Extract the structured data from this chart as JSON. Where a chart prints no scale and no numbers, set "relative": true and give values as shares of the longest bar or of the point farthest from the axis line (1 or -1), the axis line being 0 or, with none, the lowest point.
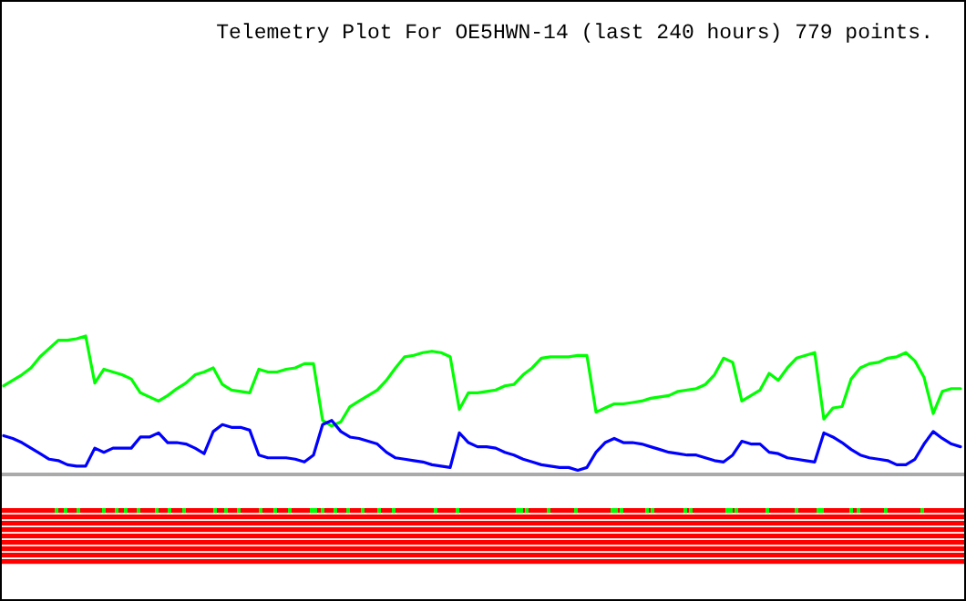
{
  "chart_data": {
    "type": "line",
    "title": "Telemetry Plot For OE5HWN-14 (last 240 hours) 779 points.",
    "relative": true,
    "categories": [
      null,
      null,
      null,
      null,
      null,
      null,
      null,
      null,
      null,
      null,
      null,
      null,
      null,
      null,
      null,
      null,
      null,
      null,
      null,
      null,
      null,
      null,
      null,
      null,
      null,
      null,
      null,
      null,
      null,
      null,
      null,
      null,
      null,
      null,
      null,
      null,
      null,
      null,
      null,
      null,
      null,
      null,
      null,
      null,
      null,
      null,
      null,
      null,
      null,
      null,
      null,
      null,
      null,
      null,
      null,
      null,
      null,
      null,
      null,
      null,
      null,
      null,
      null,
      null,
      null,
      null,
      null,
      null,
      null,
      null,
      null,
      null,
      null,
      null,
      null,
      null,
      null,
      null,
      null,
      null,
      null,
      null,
      null,
      null,
      null,
      null,
      null,
      null,
      null,
      null,
      null,
      null,
      null,
      null,
      null,
      null,
      null,
      null,
      null,
      null,
      null,
      null,
      null,
      null,
      null,
      null
    ],
    "series": [
      {
        "color": "#00ff00",
        "values": [
          0.64,
          0.68,
          0.72,
          0.77,
          0.85,
          0.91,
          0.97,
          0.97,
          0.98,
          1.0,
          0.66,
          0.76,
          0.74,
          0.72,
          0.69,
          0.59,
          0.56,
          0.53,
          0.57,
          0.62,
          0.66,
          0.72,
          0.74,
          0.77,
          0.65,
          0.61,
          0.6,
          0.59,
          0.76,
          0.74,
          0.74,
          0.76,
          0.77,
          0.8,
          0.8,
          0.39,
          0.35,
          0.38,
          0.49,
          0.53,
          0.57,
          0.61,
          0.68,
          0.77,
          0.85,
          0.86,
          0.88,
          0.89,
          0.88,
          0.85,
          0.47,
          0.59,
          0.59,
          0.6,
          0.61,
          0.64,
          0.65,
          0.72,
          0.77,
          0.84,
          0.85,
          0.85,
          0.85,
          0.86,
          0.86,
          0.45,
          0.48,
          0.51,
          0.51,
          0.52,
          0.53,
          0.55,
          0.56,
          0.57,
          0.6,
          0.61,
          0.62,
          0.65,
          0.72,
          0.84,
          0.81,
          0.53,
          0.57,
          0.61,
          0.73,
          0.68,
          0.77,
          0.84,
          0.86,
          0.88,
          0.4,
          0.48,
          0.49,
          0.69,
          0.77,
          0.8,
          0.81,
          0.84,
          0.85,
          0.88,
          0.82,
          0.7,
          0.44,
          0.6,
          0.62,
          0.62
        ]
      },
      {
        "color": "#0000ff",
        "values": [
          0.28,
          0.26,
          0.23,
          0.19,
          0.15,
          0.11,
          0.1,
          0.07,
          0.06,
          0.06,
          0.19,
          0.16,
          0.19,
          0.19,
          0.19,
          0.27,
          0.27,
          0.3,
          0.23,
          0.23,
          0.22,
          0.19,
          0.15,
          0.31,
          0.36,
          0.34,
          0.34,
          0.32,
          0.14,
          0.12,
          0.12,
          0.12,
          0.11,
          0.09,
          0.14,
          0.36,
          0.39,
          0.31,
          0.27,
          0.26,
          0.24,
          0.22,
          0.16,
          0.12,
          0.11,
          0.1,
          0.09,
          0.07,
          0.06,
          0.05,
          0.3,
          0.23,
          0.2,
          0.2,
          0.19,
          0.16,
          0.14,
          0.11,
          0.09,
          0.07,
          0.06,
          0.05,
          0.05,
          0.03,
          0.05,
          0.16,
          0.23,
          0.26,
          0.23,
          0.23,
          0.22,
          0.2,
          0.18,
          0.16,
          0.15,
          0.14,
          0.14,
          0.12,
          0.1,
          0.09,
          0.14,
          0.24,
          0.22,
          0.22,
          0.16,
          0.15,
          0.12,
          0.11,
          0.1,
          0.09,
          0.3,
          0.27,
          0.23,
          0.18,
          0.14,
          0.12,
          0.11,
          0.1,
          0.07,
          0.07,
          0.11,
          0.22,
          0.31,
          0.26,
          0.22,
          0.2
        ]
      }
    ]
  }
}
